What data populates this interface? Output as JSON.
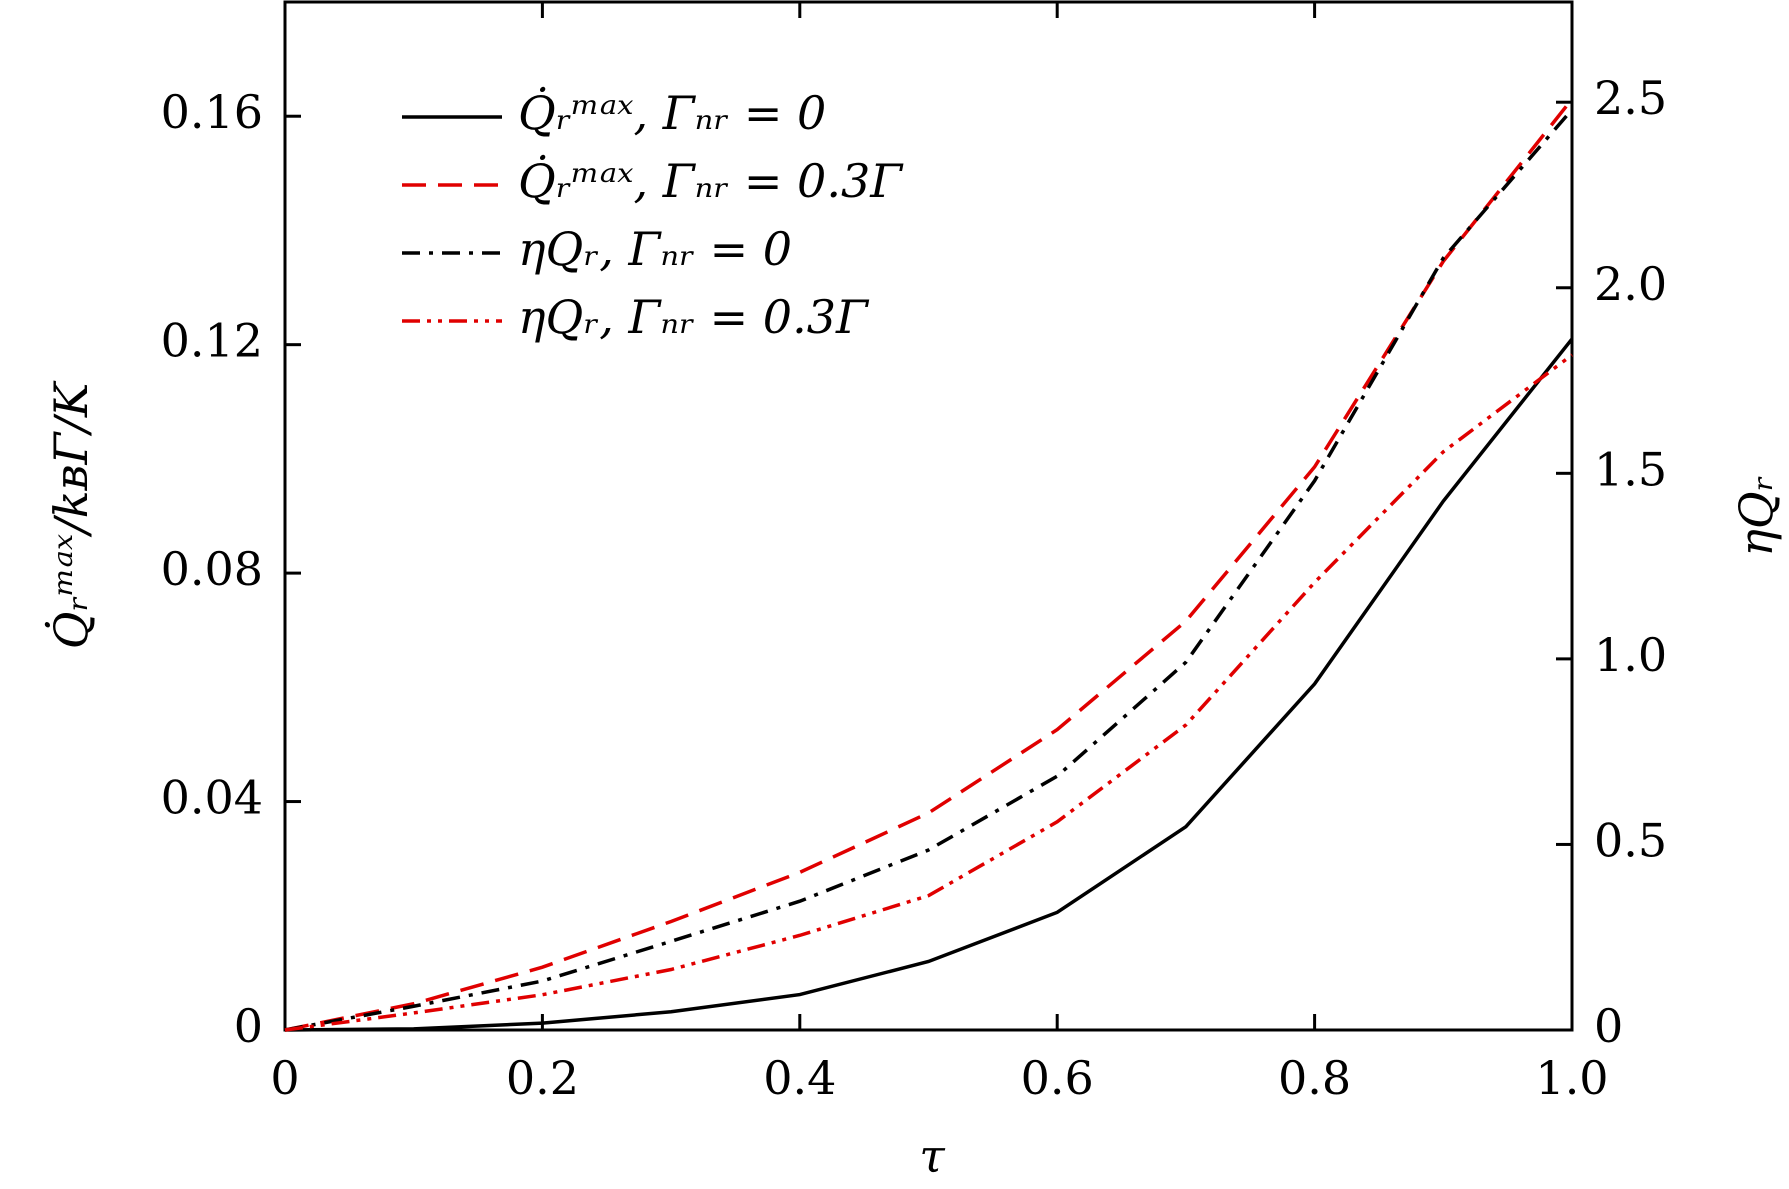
{
  "chart_data": {
    "type": "line",
    "x_label": "τ",
    "y_label": "Q̇ᵣᵐᵃˣ/kʙΓ/K",
    "y2_label": "ηQᵣ",
    "x": [
      0,
      0.1,
      0.2,
      0.3,
      0.4,
      0.5,
      0.6,
      0.7,
      0.8,
      0.9,
      1.0
    ],
    "series": [
      {
        "name": "Q̇ᵣᵐᵃˣ, Γₙᵣ = 0",
        "color": "#000000",
        "dash": "solid",
        "values": [
          0,
          0.0002,
          0.0012,
          0.0032,
          0.0062,
          0.012,
          0.0206,
          0.0356,
          0.0606,
          0.0926,
          0.121
        ]
      },
      {
        "name": "Q̇ᵣᵐᵃˣ, Γₙᵣ = 0.3Γ",
        "color": "#e00000",
        "dash": "dashed",
        "values": [
          0,
          0.0046,
          0.011,
          0.019,
          0.0276,
          0.038,
          0.0526,
          0.0716,
          0.0986,
          0.1346,
          0.163
        ]
      },
      {
        "name": "ηQᵣ, Γₙᵣ = 0",
        "color": "#000000",
        "dash": "dashdot",
        "axis": "y2",
        "values": [
          0,
          0.064,
          0.132,
          0.239,
          0.347,
          0.485,
          0.684,
          0.991,
          1.48,
          2.08,
          2.48
        ]
      },
      {
        "name": "ηQᵣ, Γₙᵣ = 0.3Γ",
        "color": "#e00000",
        "dash": "dashdotdot",
        "axis": "y2",
        "values": [
          0,
          0.046,
          0.095,
          0.163,
          0.255,
          0.362,
          0.561,
          0.822,
          1.206,
          1.558,
          1.819
        ]
      }
    ],
    "xlim": [
      0,
      1
    ],
    "xticks": [
      0,
      0.2,
      0.4,
      0.6,
      0.8,
      {
        "value": 1,
        "label": "1.0"
      }
    ],
    "ylim": [
      0,
      0.18
    ],
    "yticks": [
      0,
      0.04,
      0.08,
      0.12,
      0.16
    ],
    "y2lim": [
      0,
      2.77
    ],
    "y2ticks": [
      0,
      0.5,
      {
        "value": 1,
        "label": "1.0"
      },
      1.5,
      {
        "value": 2,
        "label": "2.0"
      },
      2.5
    ],
    "legend": "upper left",
    "grid": false
  }
}
